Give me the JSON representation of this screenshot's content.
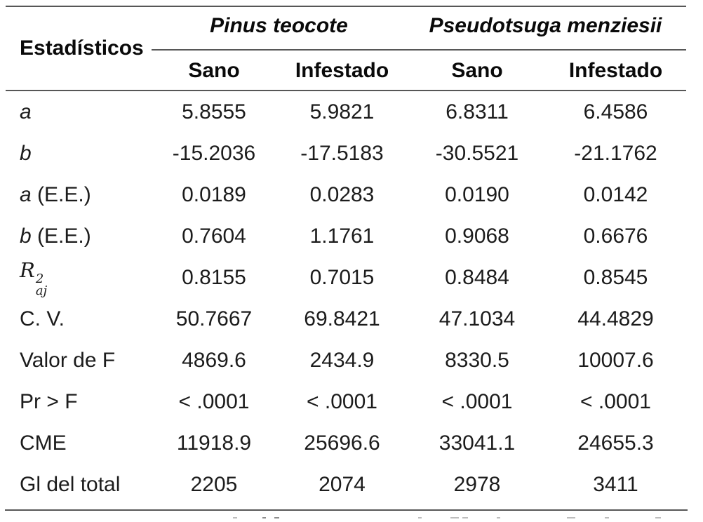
{
  "table": {
    "stat_header": "Estadísticos",
    "species": [
      "Pinus teocote",
      "Pseudotsuga menziesii"
    ],
    "condition_headers": [
      "Sano",
      "Infestado",
      "Sano",
      "Infestado"
    ],
    "rows": [
      {
        "label": "a",
        "values": [
          "5.8555",
          "5.9821",
          "6.8311",
          "6.4586"
        ]
      },
      {
        "label": "b",
        "values": [
          "-15.2036",
          "-17.5183",
          "-30.5521",
          "-21.1762"
        ]
      },
      {
        "label_em": "a",
        "label_rest": " (E.E.)",
        "values": [
          "0.0189",
          "0.0283",
          "0.0190",
          "0.0142"
        ]
      },
      {
        "label_em": "b",
        "label_rest": " (E.E.)",
        "values": [
          "0.7604",
          "1.1761",
          "0.9068",
          "0.6676"
        ]
      },
      {
        "label_base": "R",
        "label_sup": "2",
        "label_sub": "aj",
        "values": [
          "0.8155",
          "0.7015",
          "0.8484",
          "0.8545"
        ]
      },
      {
        "label": "C. V.",
        "values": [
          "50.7667",
          "69.8421",
          "47.1034",
          "44.4829"
        ]
      },
      {
        "label": "Valor de F",
        "values": [
          "4869.6",
          "2434.9",
          "8330.5",
          "10007.6"
        ]
      },
      {
        "label": "Pr > F",
        "values": [
          "< .0001",
          "< .0001",
          "< .0001",
          "< .0001"
        ]
      },
      {
        "label": "CME",
        "values": [
          "11918.9",
          "25696.6",
          "33041.1",
          "24655.3"
        ]
      },
      {
        "label": "Gl del total",
        "values": [
          "2205",
          "2074",
          "2978",
          "3411"
        ]
      }
    ]
  },
  "colors": {
    "rule": "#575757",
    "text": "#1c1c1c",
    "header_text": "#0a0a0a",
    "background": "#ffffff"
  }
}
